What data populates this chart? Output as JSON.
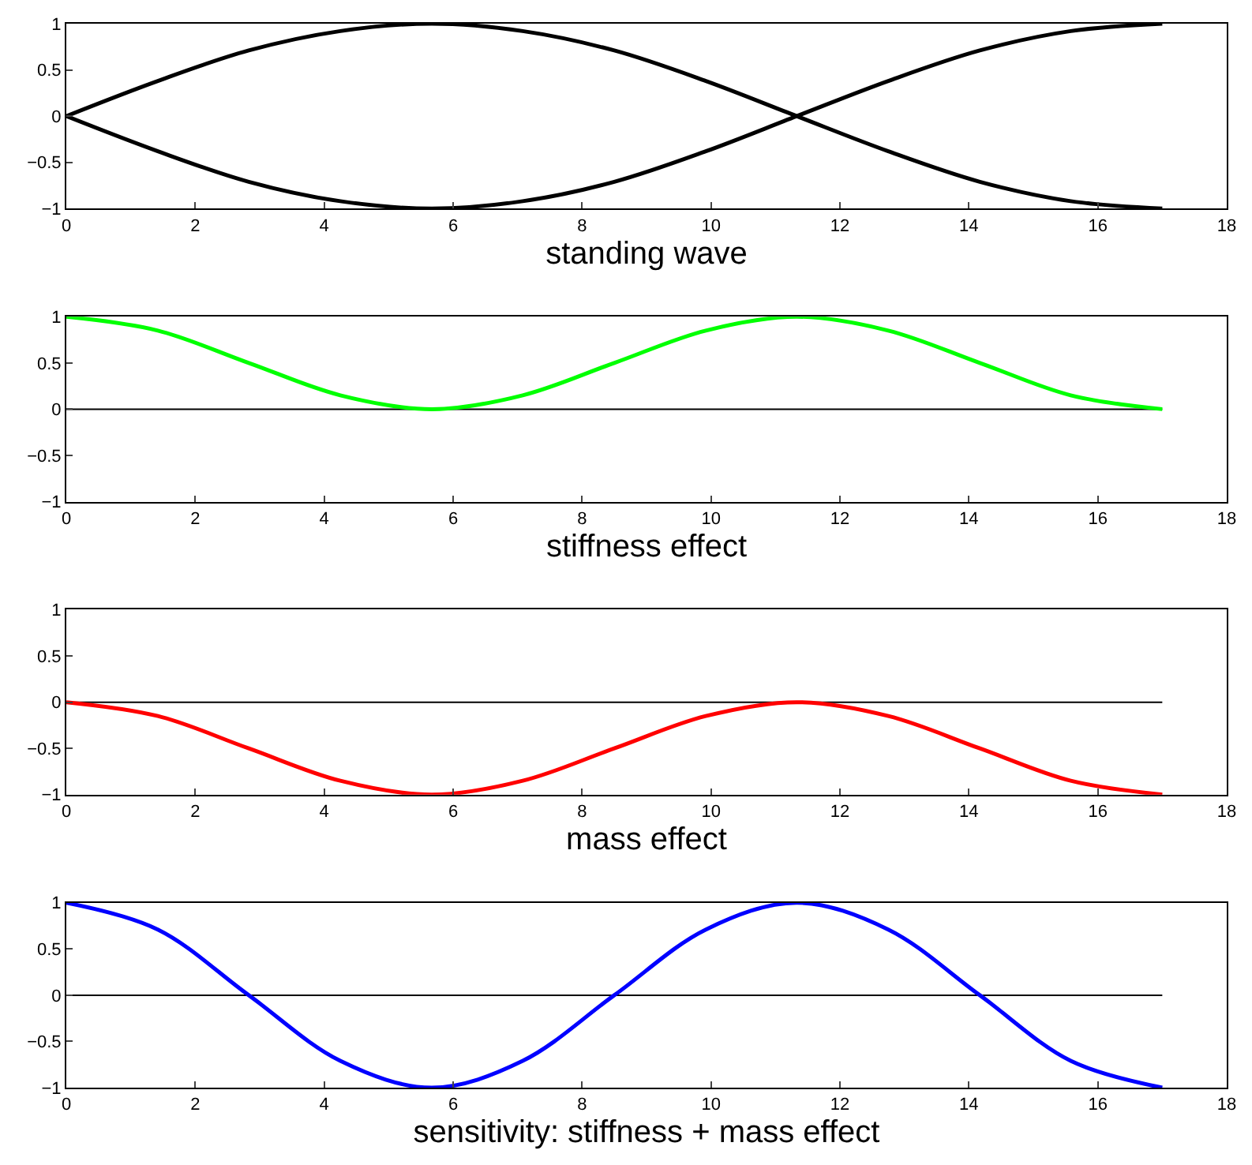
{
  "chart_data": [
    {
      "type": "line",
      "xlabel": "standing wave",
      "xlim": [
        0,
        18
      ],
      "xticks": [
        0,
        2,
        4,
        6,
        8,
        10,
        12,
        14,
        16,
        18
      ],
      "ylim": [
        -1,
        1
      ],
      "yticks": [
        -1,
        -0.5,
        0,
        0.5,
        1
      ],
      "series": [
        {
          "color": "#000000",
          "x": [
            0,
            1.42,
            2.83,
            4.25,
            5.67,
            7.08,
            8.5,
            9.92,
            11.33,
            12.75,
            14.17,
            15.58,
            17
          ],
          "values": [
            0,
            0.38,
            0.71,
            0.92,
            1,
            0.92,
            0.71,
            0.38,
            0,
            -0.38,
            -0.71,
            -0.92,
            -1
          ]
        },
        {
          "color": "#000000",
          "x": [
            0,
            1.42,
            2.83,
            4.25,
            5.67,
            7.08,
            8.5,
            9.92,
            11.33,
            12.75,
            14.17,
            15.58,
            17
          ],
          "values": [
            0,
            -0.38,
            -0.71,
            -0.92,
            -1,
            -0.92,
            -0.71,
            -0.38,
            0,
            0.38,
            0.71,
            0.92,
            1
          ]
        }
      ]
    },
    {
      "type": "line",
      "xlabel": "stiffness effect",
      "xlim": [
        0,
        18
      ],
      "xticks": [
        0,
        2,
        4,
        6,
        8,
        10,
        12,
        14,
        16,
        18
      ],
      "ylim": [
        -1,
        1
      ],
      "yticks": [
        -1,
        -0.5,
        0,
        0.5,
        1
      ],
      "series": [
        {
          "color": "#000000",
          "x": [
            0,
            17
          ],
          "values": [
            0,
            0
          ]
        },
        {
          "color": "#00ff00",
          "x": [
            0,
            1.42,
            2.83,
            4.25,
            5.67,
            7.08,
            8.5,
            9.92,
            11.33,
            12.75,
            14.17,
            15.58,
            17
          ],
          "values": [
            1,
            0.85,
            0.5,
            0.15,
            0,
            0.15,
            0.5,
            0.85,
            1,
            0.85,
            0.5,
            0.15,
            0
          ]
        }
      ]
    },
    {
      "type": "line",
      "xlabel": "mass effect",
      "xlim": [
        0,
        18
      ],
      "xticks": [
        0,
        2,
        4,
        6,
        8,
        10,
        12,
        14,
        16,
        18
      ],
      "ylim": [
        -1,
        1
      ],
      "yticks": [
        -1,
        -0.5,
        0,
        0.5,
        1
      ],
      "series": [
        {
          "color": "#000000",
          "x": [
            0,
            17
          ],
          "values": [
            0,
            0
          ]
        },
        {
          "color": "#ff0000",
          "x": [
            0,
            1.42,
            2.83,
            4.25,
            5.67,
            7.08,
            8.5,
            9.92,
            11.33,
            12.75,
            14.17,
            15.58,
            17
          ],
          "values": [
            0,
            -0.15,
            -0.5,
            -0.85,
            -1,
            -0.85,
            -0.5,
            -0.15,
            0,
            -0.15,
            -0.5,
            -0.85,
            -1
          ]
        }
      ]
    },
    {
      "type": "line",
      "xlabel": "sensitivity: stiffness + mass effect",
      "xlim": [
        0,
        18
      ],
      "xticks": [
        0,
        2,
        4,
        6,
        8,
        10,
        12,
        14,
        16,
        18
      ],
      "ylim": [
        -1,
        1
      ],
      "yticks": [
        -1,
        -0.5,
        0,
        0.5,
        1
      ],
      "series": [
        {
          "color": "#000000",
          "x": [
            0,
            17
          ],
          "values": [
            0,
            0
          ]
        },
        {
          "color": "#0000ff",
          "x": [
            0,
            1.42,
            2.83,
            4.25,
            5.67,
            7.08,
            8.5,
            9.92,
            11.33,
            12.75,
            14.17,
            15.58,
            17
          ],
          "values": [
            1,
            0.71,
            0,
            -0.71,
            -1,
            -0.71,
            0,
            0.71,
            1,
            0.71,
            0,
            -0.71,
            -1
          ]
        }
      ]
    }
  ]
}
